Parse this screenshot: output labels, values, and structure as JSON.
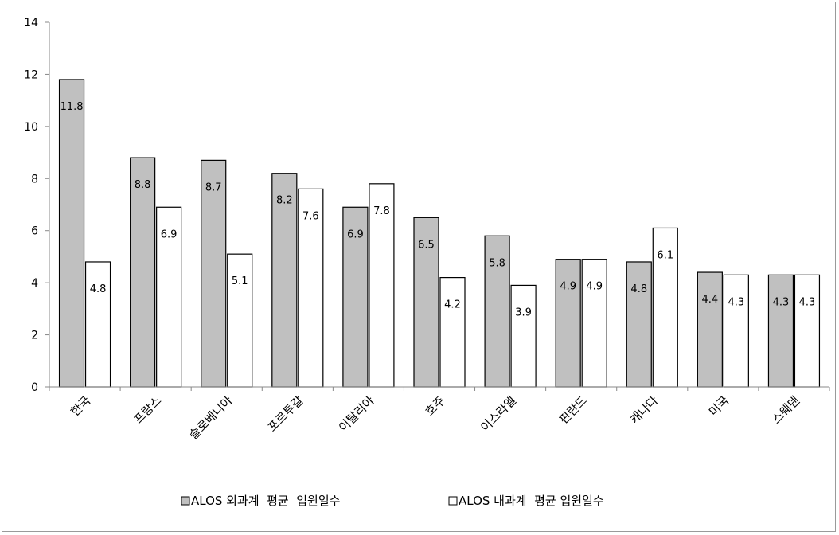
{
  "chart_data": {
    "type": "bar",
    "title": "",
    "xlabel": "",
    "ylabel": "",
    "ylim": [
      0,
      14
    ],
    "yticks": [
      0,
      2,
      4,
      6,
      8,
      10,
      12,
      14
    ],
    "grid": false,
    "legend_position": "bottom",
    "categories": [
      "한국",
      "프랑스",
      "슬로베니아",
      "포르투갈",
      "이탈리아",
      "호주",
      "이스라엘",
      "핀란드",
      "캐나다",
      "미국",
      "스웨덴"
    ],
    "series": [
      {
        "name": "ALOS 외과계  평균  입원일수",
        "color": "#c0c0c0",
        "values": [
          11.8,
          8.8,
          8.7,
          8.2,
          6.9,
          6.5,
          5.8,
          4.9,
          4.8,
          4.4,
          4.3
        ],
        "labels": [
          "11.8",
          "8.8",
          "8.7",
          "8.2",
          "6.9",
          "6.5",
          "5.8",
          "4.9",
          "4.8",
          "4.4",
          "4.3"
        ]
      },
      {
        "name": "ALOS 내과계  평균 입원일수",
        "color": "#ffffff",
        "values": [
          4.8,
          6.9,
          5.1,
          7.6,
          7.8,
          4.2,
          3.9,
          4.9,
          6.1,
          4.3,
          4.3
        ],
        "labels": [
          "4.8",
          "6.9",
          "5.1",
          "7.6",
          "7.8",
          "4.2",
          "3.9",
          "4.9",
          "6.1",
          "4.3",
          "4.3"
        ]
      }
    ]
  }
}
